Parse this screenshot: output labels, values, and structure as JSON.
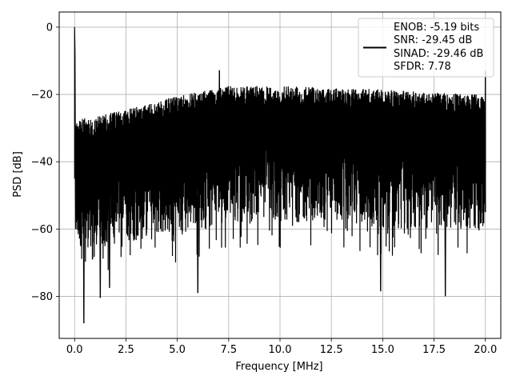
{
  "chart_data": {
    "type": "line",
    "xlabel": "Frequency [MHz]",
    "ylabel": "PSD [dB]",
    "xlim": [
      -0.75,
      20.75
    ],
    "ylim": [
      -92.5,
      4.5
    ],
    "xticks": [
      0.0,
      2.5,
      5.0,
      7.5,
      10.0,
      12.5,
      15.0,
      17.5,
      20.0
    ],
    "xtick_labels": [
      "0.0",
      "2.5",
      "5.0",
      "7.5",
      "10.0",
      "12.5",
      "15.0",
      "17.5",
      "20.0"
    ],
    "yticks": [
      0,
      -20,
      -40,
      -60,
      -80
    ],
    "ytick_labels": [
      "0",
      "−20",
      "−40",
      "−60",
      "−80"
    ],
    "grid": true,
    "legend_position": "top-right",
    "series": [
      {
        "color": "#000000",
        "x_range": [
          0,
          20
        ],
        "peak": {
          "x": 0.0,
          "y": 0.0
        },
        "spur": {
          "x": 7.05,
          "y": -12.8
        },
        "upper_envelope": [
          [
            0.1,
            -27.5
          ],
          [
            1.0,
            -26.5
          ],
          [
            2.5,
            -24.5
          ],
          [
            5.0,
            -20.5
          ],
          [
            7.5,
            -17.5
          ],
          [
            10.0,
            -17.5
          ],
          [
            12.5,
            -18.0
          ],
          [
            15.0,
            -18.5
          ],
          [
            17.5,
            -19.5
          ],
          [
            20.0,
            -20.0
          ]
        ],
        "lower_envelope": [
          [
            0.1,
            -65
          ],
          [
            1.0,
            -66
          ],
          [
            2.5,
            -64
          ],
          [
            5.0,
            -62
          ],
          [
            7.5,
            -58
          ],
          [
            10.0,
            -58
          ],
          [
            12.5,
            -58
          ],
          [
            15.0,
            -60
          ],
          [
            17.5,
            -60
          ],
          [
            20.0,
            -60
          ]
        ],
        "deep_dips": [
          [
            0.45,
            -88.0
          ],
          [
            1.25,
            -80.5
          ],
          [
            1.7,
            -77.5
          ],
          [
            6.0,
            -79.0
          ],
          [
            14.9,
            -78.5
          ],
          [
            18.05,
            -80.0
          ]
        ]
      }
    ],
    "legend_entries": [
      "ENOB: -5.19 bits",
      "SNR: -29.45 dB",
      "SINAD: -29.46 dB",
      "SFDR: 7.78"
    ]
  }
}
